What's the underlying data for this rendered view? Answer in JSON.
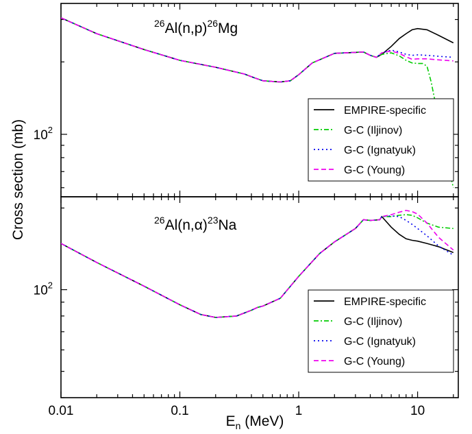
{
  "chart_data": [
    {
      "type": "line",
      "title_parts": {
        "pre_sup": "26",
        "pre": "Al(n,p)",
        "post_sup": "26",
        "post": "Mg"
      },
      "xlabel": "E",
      "xlabel_sub": "n",
      "xlabel_unit": " (MeV)",
      "ylabel": "Cross section (mb)",
      "xscale": "log",
      "yscale": "log",
      "xlim": [
        0.01,
        22
      ],
      "ylim": [
        55,
        350
      ],
      "x_ticks": [
        0.01,
        0.1,
        1,
        10
      ],
      "x_tick_labels": [
        "0.01",
        "0.1",
        "1",
        "10"
      ],
      "y_tick_base": "10",
      "y_tick_exp": "2",
      "y_tick_value": 100,
      "legend_position": "lower-right",
      "series": [
        {
          "name": "EMPIRE-specific",
          "color": "#000000",
          "dash": "solid",
          "x": [
            0.01,
            0.02,
            0.05,
            0.1,
            0.2,
            0.35,
            0.42,
            0.5,
            0.7,
            0.85,
            1.0,
            1.3,
            2.0,
            3.0,
            3.5,
            4.0,
            4.5,
            5.0,
            6,
            7,
            8,
            9,
            10,
            12,
            15,
            20
          ],
          "y": [
            305,
            262,
            225,
            203,
            190,
            178,
            172,
            167,
            165,
            167,
            177,
            198,
            217,
            219,
            220,
            213,
            209,
            215,
            232,
            250,
            262,
            272,
            275,
            272,
            258,
            240
          ]
        },
        {
          "name": "G-C (Iljinov)",
          "color": "#00cc00",
          "dash": "dashdot",
          "x": [
            0.01,
            0.02,
            0.05,
            0.1,
            0.2,
            0.35,
            0.42,
            0.5,
            0.7,
            0.85,
            1.0,
            1.3,
            2.0,
            3.0,
            3.5,
            4.0,
            4.5,
            5.0,
            6,
            7,
            8,
            9,
            10,
            11,
            12,
            13,
            14,
            15,
            16,
            17,
            18,
            20
          ],
          "y": [
            305,
            262,
            225,
            203,
            190,
            178,
            172,
            167,
            165,
            167,
            177,
            198,
            217,
            219,
            220,
            213,
            209,
            215,
            218,
            212,
            203,
            198,
            197,
            197,
            192,
            165,
            138,
            115,
            98,
            85,
            74,
            60
          ]
        },
        {
          "name": "G-C (Ignatyuk)",
          "color": "#0000ee",
          "dash": "dot",
          "x": [
            0.01,
            0.02,
            0.05,
            0.1,
            0.2,
            0.35,
            0.42,
            0.5,
            0.7,
            0.85,
            1.0,
            1.3,
            2.0,
            3.0,
            3.5,
            4.0,
            4.5,
            5.0,
            6,
            7,
            8,
            9,
            10,
            12,
            15,
            20
          ],
          "y": [
            305,
            262,
            225,
            203,
            190,
            178,
            172,
            167,
            165,
            167,
            177,
            198,
            217,
            219,
            220,
            213,
            209,
            218,
            224,
            220,
            215,
            213,
            214,
            213,
            211,
            209
          ]
        },
        {
          "name": "G-C (Young)",
          "color": "#ee00ee",
          "dash": "dash",
          "x": [
            0.01,
            0.02,
            0.05,
            0.1,
            0.2,
            0.35,
            0.42,
            0.5,
            0.7,
            0.85,
            1.0,
            1.3,
            2.0,
            3.0,
            3.5,
            4.0,
            4.5,
            5.0,
            6,
            7,
            8,
            9,
            10,
            12,
            15,
            20
          ],
          "y": [
            305,
            262,
            225,
            203,
            190,
            178,
            172,
            167,
            165,
            167,
            177,
            198,
            217,
            219,
            220,
            213,
            209,
            218,
            222,
            217,
            210,
            205,
            206,
            206,
            204,
            202
          ]
        }
      ]
    },
    {
      "type": "line",
      "title_parts": {
        "pre_sup": "26",
        "pre": "Al(n,α)",
        "post_sup": "23",
        "post": "Na"
      },
      "xlabel": "E",
      "xlabel_sub": "n",
      "xlabel_unit": " (MeV)",
      "ylabel": "Cross section (mb)",
      "xscale": "log",
      "yscale": "log",
      "xlim": [
        0.01,
        22
      ],
      "ylim": [
        40,
        220
      ],
      "x_ticks": [
        0.01,
        0.1,
        1,
        10
      ],
      "x_tick_labels": [
        "0.01",
        "0.1",
        "1",
        "10"
      ],
      "y_tick_base": "10",
      "y_tick_exp": "2",
      "y_tick_value": 100,
      "legend_position": "lower-right",
      "series": [
        {
          "name": "EMPIRE-specific",
          "color": "#000000",
          "dash": "solid",
          "x": [
            0.01,
            0.02,
            0.05,
            0.1,
            0.15,
            0.2,
            0.3,
            0.4,
            0.45,
            0.5,
            0.7,
            1.0,
            1.5,
            2.0,
            3.0,
            3.5,
            4.0,
            4.8,
            5.0,
            6,
            7,
            8,
            9,
            10,
            12,
            15,
            20
          ],
          "y": [
            148,
            126,
            103,
            88,
            81,
            79,
            80,
            84,
            86,
            87,
            93,
            112,
            136,
            150,
            168,
            181,
            180,
            181,
            186,
            170,
            160,
            154,
            152,
            151,
            148,
            144,
            137
          ]
        },
        {
          "name": "G-C (Iljinov)",
          "color": "#00cc00",
          "dash": "dashdot",
          "x": [
            0.01,
            0.02,
            0.05,
            0.1,
            0.15,
            0.2,
            0.3,
            0.4,
            0.45,
            0.5,
            0.7,
            1.0,
            1.5,
            2.0,
            3.0,
            3.5,
            4.0,
            4.8,
            5.0,
            6,
            7,
            8,
            9,
            10,
            12,
            15,
            20
          ],
          "y": [
            148,
            126,
            103,
            88,
            81,
            79,
            80,
            84,
            86,
            87,
            93,
            112,
            136,
            150,
            168,
            181,
            180,
            181,
            186,
            186,
            188,
            189,
            188,
            184,
            176,
            170,
            168
          ]
        },
        {
          "name": "G-C (Ignatyuk)",
          "color": "#0000ee",
          "dash": "dot",
          "x": [
            0.01,
            0.02,
            0.05,
            0.1,
            0.15,
            0.2,
            0.3,
            0.4,
            0.45,
            0.5,
            0.7,
            1.0,
            1.5,
            2.0,
            3.0,
            3.5,
            4.0,
            4.8,
            5.0,
            6,
            7,
            8,
            9,
            10,
            12,
            15,
            20
          ],
          "y": [
            148,
            126,
            103,
            88,
            81,
            79,
            80,
            84,
            86,
            87,
            93,
            112,
            136,
            150,
            168,
            181,
            180,
            181,
            186,
            187,
            186,
            180,
            174,
            168,
            158,
            145,
            134
          ]
        },
        {
          "name": "G-C (Young)",
          "color": "#ee00ee",
          "dash": "dash",
          "x": [
            0.01,
            0.02,
            0.05,
            0.1,
            0.15,
            0.2,
            0.3,
            0.4,
            0.45,
            0.5,
            0.7,
            1.0,
            1.5,
            2.0,
            3.0,
            3.5,
            4.0,
            4.8,
            5.0,
            6,
            7,
            8,
            9,
            10,
            12,
            15,
            20
          ],
          "y": [
            148,
            126,
            103,
            88,
            81,
            79,
            80,
            84,
            86,
            87,
            93,
            112,
            136,
            150,
            168,
            181,
            180,
            181,
            186,
            189,
            193,
            196,
            194,
            190,
            176,
            156,
            140
          ]
        }
      ]
    }
  ]
}
